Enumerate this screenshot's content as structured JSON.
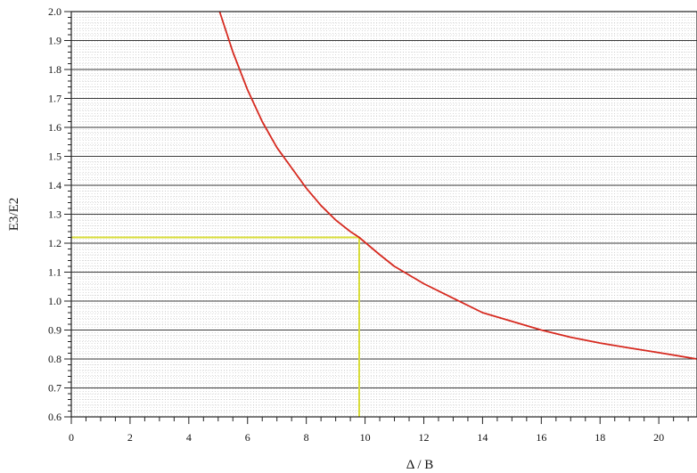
{
  "chart_data": {
    "type": "line",
    "title": "",
    "xlabel": "Δ / B",
    "ylabel": "E3/E2",
    "xlim": [
      0,
      21.3
    ],
    "ylim": [
      0.6,
      2.0
    ],
    "x_major_ticks": [
      0,
      2,
      4,
      6,
      8,
      10,
      12,
      14,
      16,
      18,
      20
    ],
    "x_tick_labels": [
      "0",
      "2",
      "4",
      "6",
      "8",
      "10",
      "12",
      "14",
      "16",
      "18",
      "20"
    ],
    "x_minor_step": 0.5,
    "y_major_ticks": [
      0.6,
      0.7,
      0.8,
      0.9,
      1.0,
      1.1,
      1.2,
      1.3,
      1.4,
      1.5,
      1.6,
      1.7,
      1.8,
      1.9,
      2.0
    ],
    "y_tick_labels": [
      "0.6",
      "0.7",
      "0.8",
      "0.9",
      "1.0",
      "1.1",
      "1.2",
      "1.3",
      "1.4",
      "1.5",
      "1.6",
      "1.7",
      "1.8",
      "1.9",
      "2.0"
    ],
    "grid": true,
    "series": [
      {
        "color": "#d62a20",
        "x": [
          5.05,
          5.5,
          6.0,
          6.5,
          7.0,
          7.5,
          8.0,
          8.5,
          9.0,
          9.5,
          9.8,
          10.5,
          11.0,
          12.0,
          13.0,
          14.0,
          15.0,
          16.0,
          17.0,
          18.0,
          19.0,
          20.0,
          21.3
        ],
        "y": [
          2.0,
          1.86,
          1.73,
          1.62,
          1.53,
          1.46,
          1.39,
          1.33,
          1.28,
          1.24,
          1.22,
          1.16,
          1.12,
          1.06,
          1.01,
          0.96,
          0.93,
          0.9,
          0.875,
          0.855,
          0.838,
          0.822,
          0.8
        ]
      }
    ],
    "annotations": [
      {
        "type": "crosshair",
        "color": "#d8dc3a",
        "x": 9.8,
        "y": 1.22
      }
    ]
  }
}
